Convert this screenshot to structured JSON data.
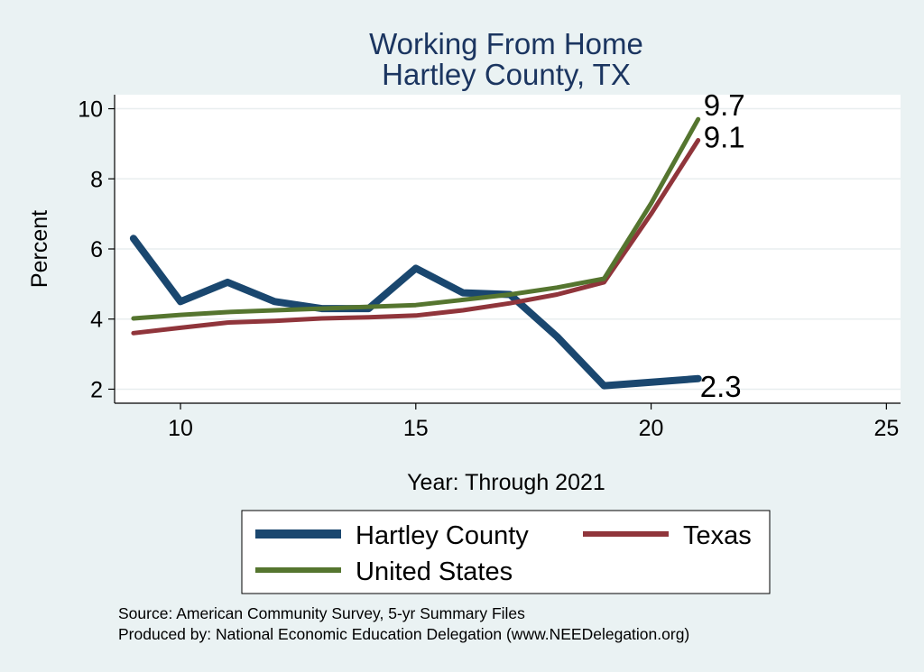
{
  "chart_data": {
    "type": "line",
    "title": [
      "Working From Home",
      "Hartley County, TX"
    ],
    "xlabel": "Year: Through 2021",
    "ylabel": "Percent",
    "xlim": [
      8.6,
      25.3
    ],
    "ylim": [
      1.6,
      10.4
    ],
    "xticks": [
      10,
      15,
      20,
      25
    ],
    "yticks": [
      2,
      4,
      6,
      8,
      10
    ],
    "grid": true,
    "legend_position": "bottom",
    "series": [
      {
        "name": "Hartley County",
        "color": "#1a476f",
        "x": [
          9,
          10,
          11,
          12,
          13,
          14,
          15,
          16,
          17,
          18,
          19,
          20,
          21
        ],
        "y": [
          6.3,
          4.5,
          5.05,
          4.5,
          4.3,
          4.3,
          5.45,
          4.75,
          4.7,
          3.5,
          2.1,
          2.2,
          2.3
        ],
        "end_label": "2.3"
      },
      {
        "name": "Texas",
        "color": "#90353b",
        "x": [
          9,
          10,
          11,
          12,
          13,
          14,
          15,
          16,
          17,
          18,
          19,
          20,
          21
        ],
        "y": [
          3.6,
          3.75,
          3.9,
          3.95,
          4.02,
          4.05,
          4.1,
          4.25,
          4.45,
          4.7,
          5.05,
          7.0,
          9.1
        ],
        "end_label": "9.1"
      },
      {
        "name": "United States",
        "color": "#55752f",
        "x": [
          9,
          10,
          11,
          12,
          13,
          14,
          15,
          16,
          17,
          18,
          19,
          20,
          21
        ],
        "y": [
          4.02,
          4.12,
          4.2,
          4.25,
          4.3,
          4.35,
          4.4,
          4.55,
          4.7,
          4.9,
          5.15,
          7.3,
          9.7
        ],
        "end_label": "9.7"
      }
    ]
  },
  "source": {
    "line1": "Source: American Community Survey, 5-yr Summary Files",
    "line2": "Produced by: National Economic Education Delegation (www.NEEDelegation.org)"
  }
}
